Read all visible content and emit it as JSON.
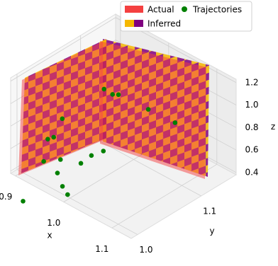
{
  "chart_data": {
    "type": "scatter3d",
    "xlabel": "x",
    "ylabel": "y",
    "zlabel": "z",
    "xlim": [
      0.89,
      1.14
    ],
    "ylim": [
      0.99,
      1.155
    ],
    "zlim": [
      0.38,
      1.23
    ],
    "xticks": [
      0.9,
      {
        "value": 1.0,
        "label": "1.0"
      },
      1.1
    ],
    "yticks": [
      {
        "value": 1.0,
        "label": "1.0"
      },
      1.1
    ],
    "zticks": [
      0.4,
      0.6,
      0.8,
      {
        "value": 1.0,
        "label": "1.0"
      },
      1.2
    ],
    "grid": true,
    "surfaces": [
      {
        "name": "Actual",
        "colors": [
          "#f44040"
        ]
      },
      {
        "name": "Inferred",
        "colors": [
          "#f5b800",
          "#800080"
        ]
      }
    ],
    "series": [
      {
        "name": "Trajectories",
        "color": "#008000",
        "x": [
          0.961,
          0.98,
          0.987,
          1.029,
          1.074,
          0.943,
          0.941,
          0.938,
          0.986,
          0.981,
          0.975,
          0.963,
          0.948,
          0.958,
          0.979,
          0.991,
          0.954
        ],
        "y": [
          1.083,
          1.082,
          1.086,
          1.101,
          1.109,
          1.031,
          1.019,
          1.012,
          1.063,
          1.048,
          1.036,
          1.013,
          0.998,
          1.012,
          1.004,
          1.003,
          0.961
        ],
        "z": [
          0.975,
          0.975,
          0.975,
          0.89,
          0.848,
          0.848,
          0.72,
          0.72,
          0.55,
          0.55,
          0.508,
          0.593,
          0.593,
          0.465,
          0.4225,
          0.38,
          0.38
        ]
      }
    ]
  }
}
